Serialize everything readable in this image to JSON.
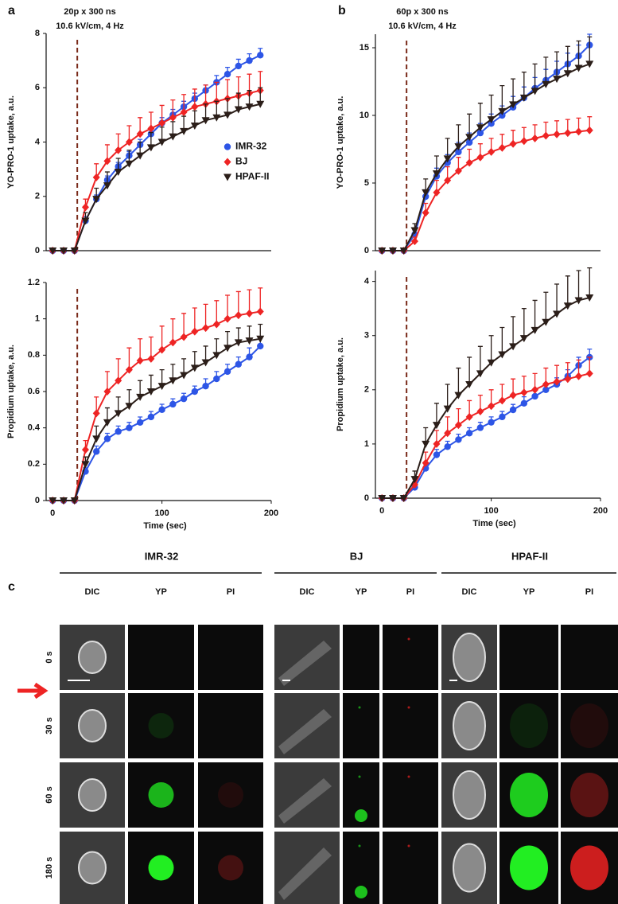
{
  "panel_labels": [
    "a",
    "b",
    "c"
  ],
  "conditions": [
    {
      "line1": "20p x 300 ns",
      "line2": "10.6 kV/cm, 4 Hz"
    },
    {
      "line1": "60p x 300 ns",
      "line2": "10.6 kV/cm, 4 Hz"
    }
  ],
  "chart_data": [
    {
      "type": "line",
      "ylabel": "YO-PRO-1 uptake, a.u.",
      "xlim": [
        -6,
        200
      ],
      "ylim": [
        0,
        8
      ],
      "yticks": [
        0,
        2,
        4,
        6,
        8
      ],
      "vline_x": 22.5,
      "legend": "right",
      "x": [
        0,
        10,
        20,
        30,
        40,
        50,
        60,
        70,
        80,
        90,
        100,
        110,
        120,
        130,
        140,
        150,
        160,
        170,
        180,
        190
      ],
      "series": [
        {
          "name": "IMR-32",
          "color": "#2d55e6",
          "marker": "circle",
          "values": [
            0,
            0,
            0,
            1.1,
            1.9,
            2.6,
            3.1,
            3.5,
            3.9,
            4.3,
            4.7,
            5.0,
            5.3,
            5.6,
            5.9,
            6.2,
            6.5,
            6.8,
            7.0,
            7.2
          ],
          "errors": [
            0.1,
            0.1,
            0.1,
            0.15,
            0.15,
            0.15,
            0.15,
            0.15,
            0.2,
            0.2,
            0.2,
            0.2,
            0.2,
            0.2,
            0.2,
            0.25,
            0.25,
            0.25,
            0.25,
            0.25
          ]
        },
        {
          "name": "BJ",
          "color": "#ee2424",
          "marker": "diamond",
          "values": [
            0,
            0,
            0,
            1.6,
            2.7,
            3.3,
            3.7,
            4.0,
            4.3,
            4.5,
            4.7,
            4.9,
            5.1,
            5.3,
            5.4,
            5.5,
            5.6,
            5.7,
            5.8,
            5.9
          ],
          "errors": [
            0.1,
            0.1,
            0.1,
            0.3,
            0.5,
            0.6,
            0.6,
            0.6,
            0.6,
            0.6,
            0.65,
            0.65,
            0.65,
            0.65,
            0.7,
            0.7,
            0.7,
            0.7,
            0.7,
            0.7
          ]
        },
        {
          "name": "HPAF-II",
          "color": "#2b1e19",
          "marker": "triangle-down",
          "values": [
            0,
            0,
            0,
            1.1,
            1.9,
            2.4,
            2.9,
            3.2,
            3.5,
            3.8,
            4.0,
            4.2,
            4.4,
            4.6,
            4.8,
            4.9,
            5.0,
            5.2,
            5.3,
            5.4
          ],
          "errors": [
            0.1,
            0.1,
            0.1,
            0.3,
            0.4,
            0.5,
            0.5,
            0.5,
            0.5,
            0.55,
            0.55,
            0.55,
            0.55,
            0.55,
            0.6,
            0.6,
            0.6,
            0.6,
            0.6,
            0.6
          ]
        }
      ]
    },
    {
      "type": "line",
      "ylabel": "Propidium uptake, a.u.",
      "xlabel": "Time (sec)",
      "xlim": [
        -6,
        200
      ],
      "ylim": [
        0,
        1.2
      ],
      "yticks": [
        0,
        0.2,
        0.4,
        0.6,
        0.8,
        1,
        1.2
      ],
      "xticks": [
        0,
        100,
        200
      ],
      "vline_x": 22.5,
      "x": [
        0,
        10,
        20,
        30,
        40,
        50,
        60,
        70,
        80,
        90,
        100,
        110,
        120,
        130,
        140,
        150,
        160,
        170,
        180,
        190
      ],
      "series": [
        {
          "name": "IMR-32",
          "color": "#2d55e6",
          "marker": "circle",
          "values": [
            0,
            0,
            0,
            0.16,
            0.27,
            0.34,
            0.38,
            0.4,
            0.43,
            0.46,
            0.5,
            0.53,
            0.56,
            0.6,
            0.63,
            0.67,
            0.71,
            0.75,
            0.79,
            0.85
          ],
          "errors": [
            0.01,
            0.01,
            0.01,
            0.02,
            0.03,
            0.03,
            0.03,
            0.03,
            0.03,
            0.03,
            0.03,
            0.03,
            0.03,
            0.03,
            0.04,
            0.04,
            0.04,
            0.04,
            0.05,
            0.05
          ]
        },
        {
          "name": "BJ",
          "color": "#ee2424",
          "marker": "diamond",
          "values": [
            0,
            0,
            0,
            0.28,
            0.48,
            0.6,
            0.66,
            0.72,
            0.77,
            0.78,
            0.83,
            0.87,
            0.9,
            0.93,
            0.95,
            0.97,
            1.0,
            1.02,
            1.03,
            1.04
          ],
          "errors": [
            0.01,
            0.01,
            0.01,
            0.05,
            0.09,
            0.11,
            0.12,
            0.12,
            0.12,
            0.12,
            0.13,
            0.13,
            0.13,
            0.13,
            0.13,
            0.13,
            0.13,
            0.13,
            0.13,
            0.13
          ]
        },
        {
          "name": "HPAF-II",
          "color": "#2b1e19",
          "marker": "triangle-down",
          "values": [
            0,
            0,
            0,
            0.2,
            0.34,
            0.43,
            0.48,
            0.52,
            0.57,
            0.6,
            0.63,
            0.66,
            0.69,
            0.73,
            0.76,
            0.8,
            0.84,
            0.87,
            0.88,
            0.89
          ],
          "errors": [
            0.01,
            0.01,
            0.01,
            0.04,
            0.07,
            0.08,
            0.09,
            0.09,
            0.09,
            0.09,
            0.09,
            0.09,
            0.09,
            0.09,
            0.09,
            0.09,
            0.09,
            0.08,
            0.08,
            0.08
          ]
        }
      ]
    },
    {
      "type": "line",
      "ylabel": "YO-PRO-1 uptake, a.u.",
      "xlim": [
        -6,
        200
      ],
      "ylim": [
        0,
        16
      ],
      "yticks": [
        0,
        5,
        10,
        15
      ],
      "vline_x": 22.5,
      "x": [
        0,
        10,
        20,
        30,
        40,
        50,
        60,
        70,
        80,
        90,
        100,
        110,
        120,
        130,
        140,
        150,
        160,
        170,
        180,
        190
      ],
      "series": [
        {
          "name": "IMR-32",
          "color": "#2d55e6",
          "marker": "circle",
          "values": [
            0,
            0,
            0,
            1.2,
            4.0,
            5.5,
            6.5,
            7.3,
            8.0,
            8.7,
            9.4,
            10.0,
            10.6,
            11.3,
            12.0,
            12.6,
            13.2,
            13.8,
            14.4,
            15.2
          ],
          "errors": [
            0.1,
            0.1,
            0.1,
            0.3,
            0.5,
            0.6,
            0.6,
            0.7,
            0.7,
            0.7,
            0.7,
            0.7,
            0.8,
            0.8,
            0.8,
            0.8,
            0.8,
            0.8,
            0.8,
            0.8
          ]
        },
        {
          "name": "BJ",
          "color": "#ee2424",
          "marker": "diamond",
          "values": [
            0,
            0,
            0,
            0.7,
            2.8,
            4.3,
            5.2,
            5.9,
            6.5,
            6.9,
            7.3,
            7.6,
            7.9,
            8.1,
            8.3,
            8.5,
            8.6,
            8.7,
            8.8,
            8.9
          ],
          "errors": [
            0.1,
            0.1,
            0.1,
            0.3,
            0.7,
            0.9,
            1.0,
            1.0,
            1.0,
            1.0,
            1.0,
            1.0,
            1.0,
            1.0,
            1.0,
            1.0,
            1.0,
            1.0,
            1.0,
            1.0
          ]
        },
        {
          "name": "HPAF-II",
          "color": "#2b1e19",
          "marker": "triangle-down",
          "values": [
            0,
            0,
            0,
            1.5,
            4.3,
            5.7,
            6.8,
            7.7,
            8.4,
            9.1,
            9.7,
            10.3,
            10.8,
            11.3,
            11.8,
            12.3,
            12.7,
            13.1,
            13.5,
            13.8
          ],
          "errors": [
            0.1,
            0.1,
            0.1,
            0.5,
            1.0,
            1.3,
            1.5,
            1.6,
            1.7,
            1.8,
            1.8,
            1.9,
            1.9,
            1.9,
            2.0,
            2.0,
            2.0,
            2.0,
            2.0,
            2.0
          ]
        }
      ]
    },
    {
      "type": "line",
      "ylabel": "Propidium uptake, a.u.",
      "xlabel": "Time (sec)",
      "xlim": [
        -6,
        200
      ],
      "ylim": [
        0,
        4.2
      ],
      "yticks": [
        0,
        1,
        2,
        3,
        4
      ],
      "xticks": [
        0,
        100,
        200
      ],
      "vline_x": 22.5,
      "x": [
        0,
        10,
        20,
        30,
        40,
        50,
        60,
        70,
        80,
        90,
        100,
        110,
        120,
        130,
        140,
        150,
        160,
        170,
        180,
        190
      ],
      "series": [
        {
          "name": "IMR-32",
          "color": "#2d55e6",
          "marker": "circle",
          "values": [
            0,
            0,
            0,
            0.2,
            0.55,
            0.8,
            0.95,
            1.08,
            1.2,
            1.3,
            1.4,
            1.5,
            1.63,
            1.75,
            1.88,
            2.0,
            2.1,
            2.25,
            2.45,
            2.6
          ],
          "errors": [
            0.02,
            0.02,
            0.02,
            0.05,
            0.08,
            0.1,
            0.1,
            0.1,
            0.1,
            0.1,
            0.1,
            0.1,
            0.1,
            0.12,
            0.12,
            0.12,
            0.12,
            0.12,
            0.15,
            0.15
          ]
        },
        {
          "name": "BJ",
          "color": "#ee2424",
          "marker": "diamond",
          "values": [
            0,
            0,
            0,
            0.25,
            0.65,
            1.0,
            1.2,
            1.35,
            1.5,
            1.6,
            1.7,
            1.8,
            1.9,
            1.95,
            2.0,
            2.1,
            2.15,
            2.2,
            2.25,
            2.3
          ],
          "errors": [
            0.02,
            0.02,
            0.02,
            0.1,
            0.2,
            0.25,
            0.3,
            0.3,
            0.3,
            0.3,
            0.3,
            0.3,
            0.3,
            0.3,
            0.3,
            0.3,
            0.3,
            0.3,
            0.3,
            0.3
          ]
        },
        {
          "name": "HPAF-II",
          "color": "#2b1e19",
          "marker": "triangle-down",
          "values": [
            0,
            0,
            0,
            0.35,
            1.0,
            1.35,
            1.65,
            1.9,
            2.1,
            2.3,
            2.5,
            2.65,
            2.8,
            2.95,
            3.1,
            3.25,
            3.4,
            3.55,
            3.65,
            3.7
          ],
          "errors": [
            0.02,
            0.02,
            0.02,
            0.15,
            0.3,
            0.4,
            0.45,
            0.5,
            0.5,
            0.5,
            0.5,
            0.5,
            0.55,
            0.55,
            0.55,
            0.55,
            0.55,
            0.55,
            0.55,
            0.55
          ]
        }
      ]
    }
  ],
  "microscopy": {
    "groups": [
      {
        "name": "IMR-32",
        "channels": [
          "DIC",
          "YP",
          "PI"
        ]
      },
      {
        "name": "BJ",
        "channels": [
          "DIC",
          "YP",
          "PI"
        ]
      },
      {
        "name": "HPAF-II",
        "channels": [
          "DIC",
          "YP",
          "PI"
        ]
      }
    ],
    "times": [
      "0 s",
      "30 s",
      "60 s",
      "180 s"
    ]
  }
}
